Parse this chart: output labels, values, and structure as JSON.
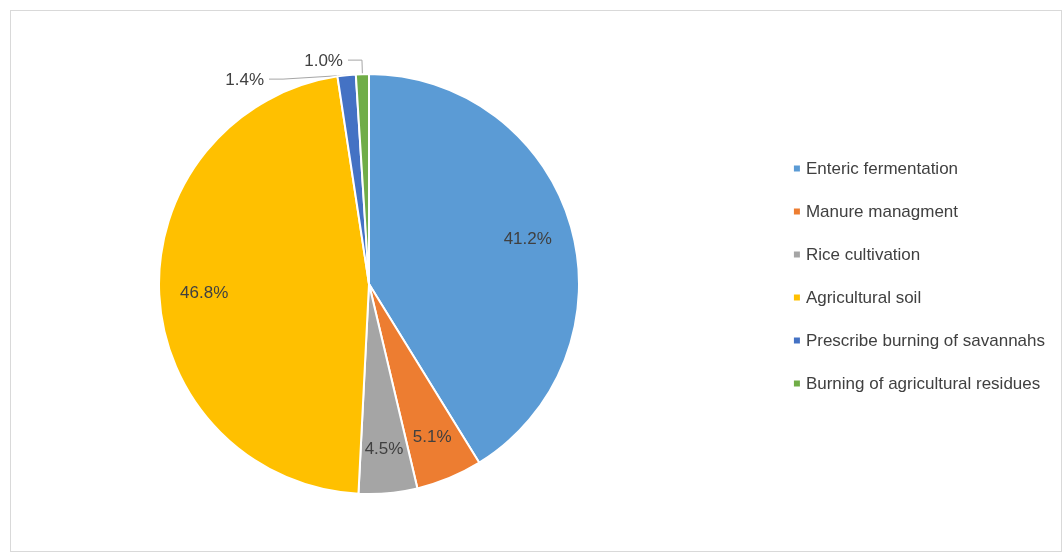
{
  "chart_data": {
    "type": "pie",
    "categories": [
      "Enteric fermentation",
      "Manure managment",
      "Rice cultivation",
      "Agricultural soil",
      "Prescribe burning of savannahs",
      "Burning of agricultural residues"
    ],
    "values": [
      41.2,
      5.1,
      4.5,
      46.8,
      1.4,
      1.0
    ],
    "colors": [
      "#5b9bd5",
      "#ed7d31",
      "#a5a5a5",
      "#ffc000",
      "#4472c4",
      "#70ad47"
    ],
    "data_labels": true,
    "value_labels": [
      "41.2%",
      "5.1%",
      "4.5%",
      "46.8%",
      "1.4%",
      "1.0%"
    ],
    "legend": "right"
  }
}
